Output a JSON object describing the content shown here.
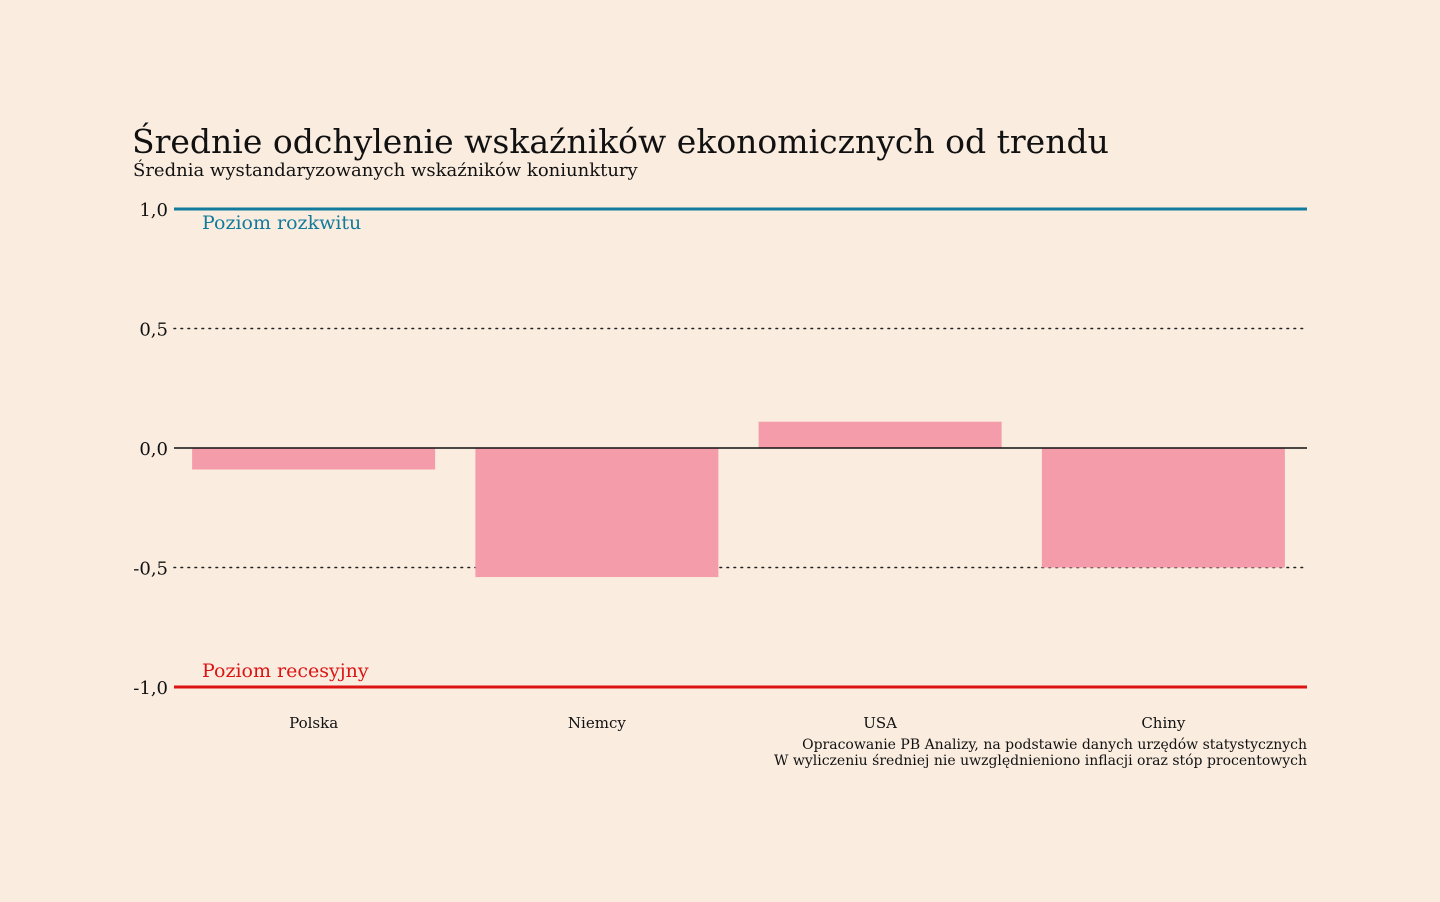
{
  "title": "Średnie odchylenie wskaźników ekonomicznych od trendu",
  "subtitle": "Średnia wystandaryzowanych wskaźników koniunktury",
  "notes": [
    "Opracowanie PB Analizy, na podstawie danych urzędów statystycznych",
    "W wyliczeniu średniej nie uwzględnieniono inflacji oraz stóp procentowych"
  ],
  "colors": {
    "background": "#faede0",
    "bar": "#f59caa",
    "boom": "#127a9b",
    "recession": "#dc1414",
    "text": "#111111"
  },
  "chart_data": {
    "type": "bar",
    "title": "Średnie odchylenie wskaźników ekonomicznych od trendu",
    "subtitle": "Średnia wystandaryzowanych wskaźników koniunktury",
    "categories": [
      "Polska",
      "Niemcy",
      "USA",
      "Chiny"
    ],
    "values": [
      -0.09,
      -0.54,
      0.11,
      -0.5
    ],
    "ylim": [
      -1.0,
      1.0
    ],
    "yticks": [
      1.0,
      0.5,
      0.0,
      -0.5,
      -1.0
    ],
    "ytick_labels": [
      "1,0",
      "0,5",
      "0,0",
      "-0,5",
      "-1,0"
    ],
    "grid": "dotted at ±0,5",
    "reference_lines": [
      {
        "value": 1.0,
        "label": "Poziom rozkwitu",
        "color": "#127a9b"
      },
      {
        "value": -1.0,
        "label": "Poziom recesyjny",
        "color": "#dc1414"
      }
    ]
  }
}
